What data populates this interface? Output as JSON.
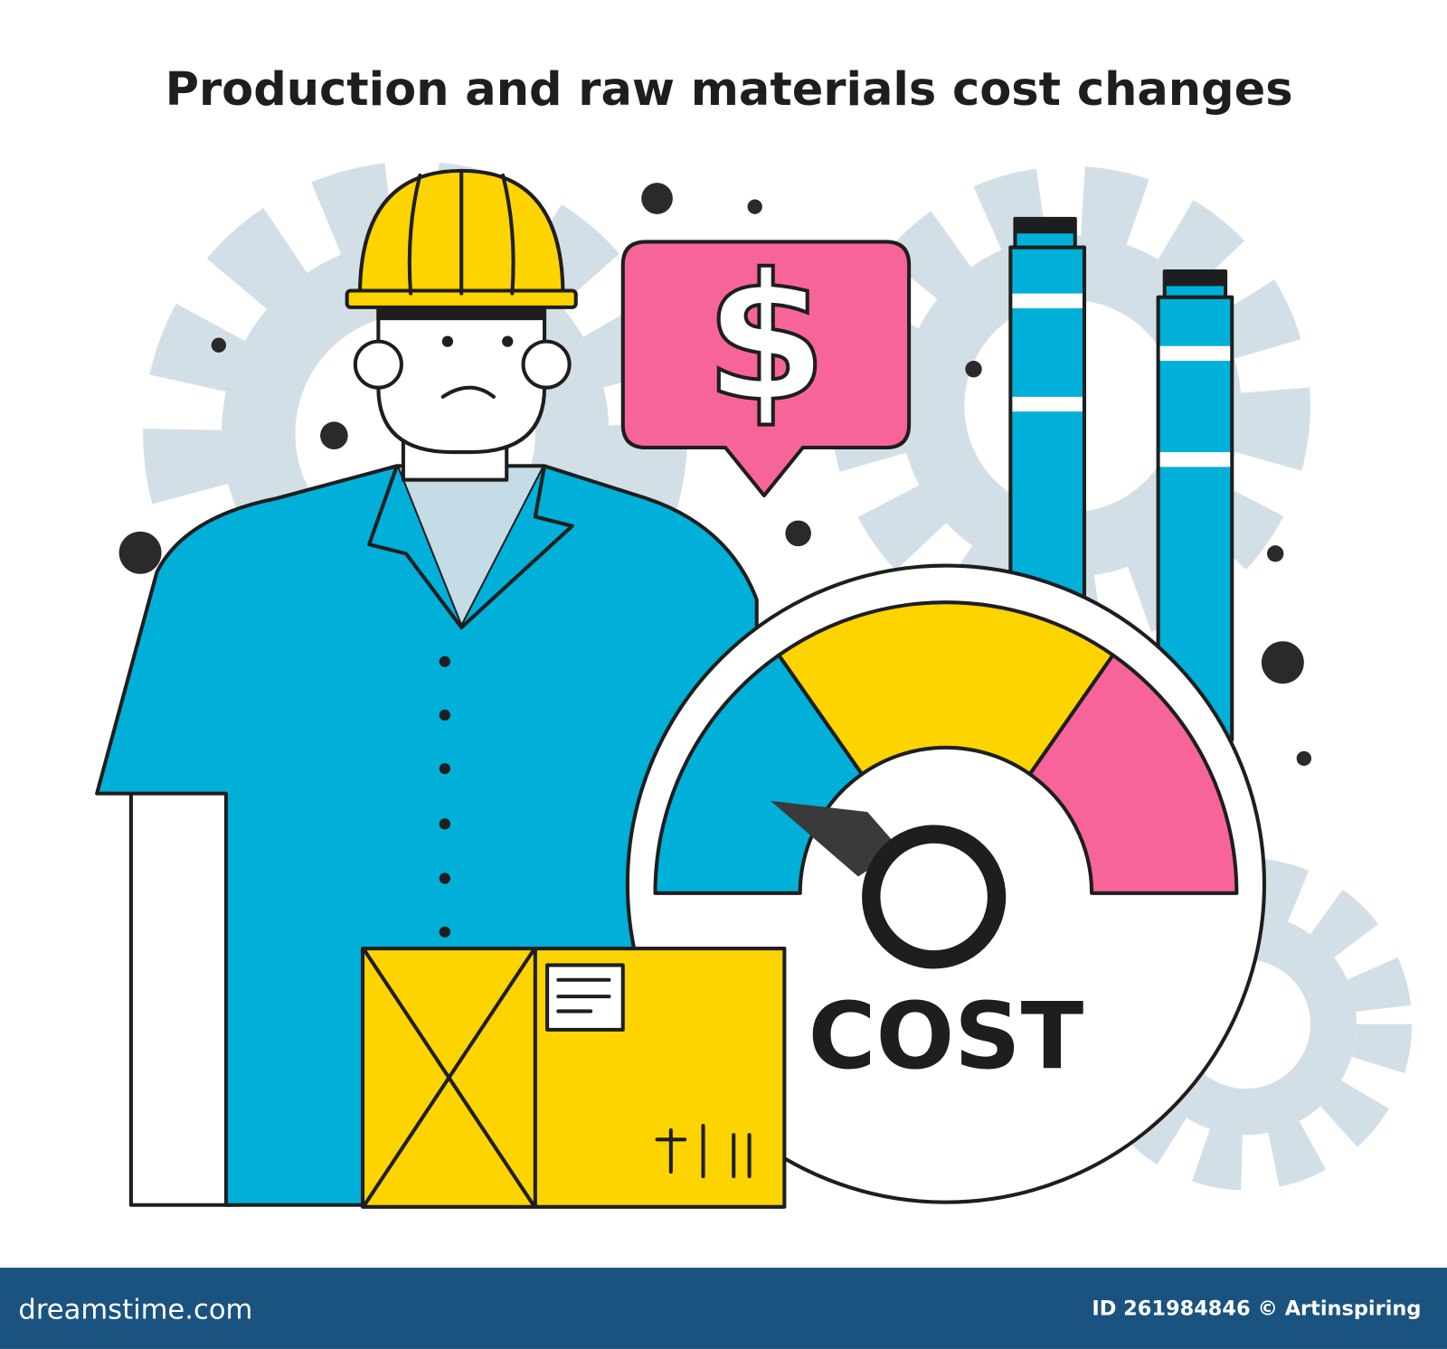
{
  "header": {
    "title": "Production and raw materials cost changes"
  },
  "bubble": {
    "symbol": "$"
  },
  "gauge": {
    "label": "COST"
  },
  "footer": {
    "brand": "dreamstime.com",
    "credit": "ID 261984846 © Artinspiring"
  }
}
